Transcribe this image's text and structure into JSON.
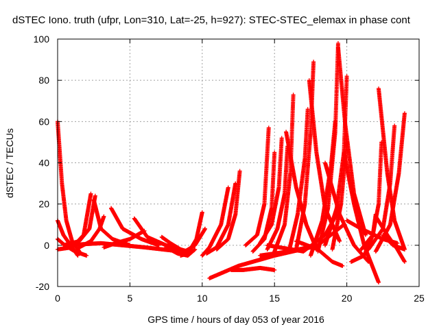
{
  "chart_data": {
    "type": "scatter",
    "title": "dSTEC Iono. truth (ufpr, Lon=310, Lat=-25, h=927): STEC-STEC_elemax in phase cont",
    "xlabel": "GPS time / hours of day 053 of year 2016",
    "ylabel": "dSTEC  / TECUs",
    "xlim": [
      0,
      25
    ],
    "ylim": [
      -20,
      100
    ],
    "xticks": [
      0,
      5,
      10,
      15,
      20,
      25
    ],
    "yticks": [
      -20,
      0,
      20,
      40,
      60,
      80,
      100
    ],
    "xtick_labels": [
      "0",
      "5",
      "10",
      "15",
      "20",
      "25"
    ],
    "ytick_labels": [
      "-20",
      "0",
      "20",
      "40",
      "60",
      "80",
      "100"
    ],
    "grid": true,
    "marker": "plus",
    "color": "#ff0000",
    "series": [
      {
        "x": [
          0.0,
          0.3,
          0.6,
          1.0,
          1.5
        ],
        "y": [
          60,
          30,
          12,
          2,
          -3
        ]
      },
      {
        "x": [
          0.0,
          0.4,
          0.9,
          1.4
        ],
        "y": [
          12,
          5,
          0,
          -5
        ]
      },
      {
        "x": [
          0.0,
          0.5,
          1.2,
          2.0
        ],
        "y": [
          3,
          0,
          -3,
          -5
        ]
      },
      {
        "x": [
          0.0,
          1.0,
          1.8,
          2.3
        ],
        "y": [
          -2,
          -1,
          5,
          25
        ]
      },
      {
        "x": [
          0.4,
          1.5,
          2.2,
          2.6
        ],
        "y": [
          0,
          2,
          8,
          24
        ]
      },
      {
        "x": [
          2.5,
          3.0,
          3.8,
          5.0
        ],
        "y": [
          22,
          8,
          3,
          0
        ]
      },
      {
        "x": [
          1.5,
          2.3,
          2.9,
          3.2
        ],
        "y": [
          -1,
          2,
          8,
          14
        ]
      },
      {
        "x": [
          3.2,
          4.0,
          5.0,
          6.0
        ],
        "y": [
          -1,
          1,
          3,
          7
        ]
      },
      {
        "x": [
          3.7,
          4.5,
          5.8,
          7.0
        ],
        "y": [
          18,
          8,
          3,
          0
        ]
      },
      {
        "x": [
          5.3,
          6.2,
          7.5,
          9.0
        ],
        "y": [
          13,
          4,
          0,
          -3
        ]
      },
      {
        "x": [
          0.5,
          3.0,
          6.0,
          8.5
        ],
        "y": [
          0,
          1,
          -1,
          -3
        ]
      },
      {
        "x": [
          7.2,
          7.8,
          8.5,
          9.0
        ],
        "y": [
          4,
          1,
          -2,
          -5
        ]
      },
      {
        "x": [
          7.5,
          8.3,
          9.0,
          9.5
        ],
        "y": [
          -1,
          -4,
          -5,
          -2
        ]
      },
      {
        "x": [
          8.5,
          9.0,
          9.6,
          10.0
        ],
        "y": [
          -5,
          -4,
          3,
          16
        ]
      },
      {
        "x": [
          8.8,
          9.5,
          10.2
        ],
        "y": [
          -3,
          0,
          8
        ]
      },
      {
        "x": [
          10.0,
          10.5,
          11.3,
          11.8
        ],
        "y": [
          -5,
          -1,
          10,
          28
        ]
      },
      {
        "x": [
          10.3,
          11.0,
          11.8,
          12.3
        ],
        "y": [
          -4,
          -1,
          10,
          30
        ]
      },
      {
        "x": [
          11.0,
          11.8,
          12.3,
          12.6
        ],
        "y": [
          -2,
          3,
          15,
          36
        ]
      },
      {
        "x": [
          10.5,
          12.5,
          15.0,
          17.5
        ],
        "y": [
          -16,
          -10,
          -5,
          -1
        ]
      },
      {
        "x": [
          12.0,
          12.8,
          14.0,
          15.0
        ],
        "y": [
          -12,
          -12,
          -11,
          -12
        ]
      },
      {
        "x": [
          13.0,
          13.8,
          14.3,
          14.6
        ],
        "y": [
          0,
          5,
          20,
          57
        ]
      },
      {
        "x": [
          13.5,
          14.3,
          14.8,
          15.0
        ],
        "y": [
          -3,
          3,
          18,
          45
        ]
      },
      {
        "x": [
          14.0,
          14.8,
          15.3,
          15.5
        ],
        "y": [
          1,
          10,
          28,
          52
        ]
      },
      {
        "x": [
          14.5,
          15.2,
          15.7,
          15.9
        ],
        "y": [
          -2,
          8,
          25,
          48
        ]
      },
      {
        "x": [
          15.0,
          15.7,
          16.1,
          16.3
        ],
        "y": [
          -3,
          10,
          35,
          73
        ]
      },
      {
        "x": [
          15.8,
          16.5,
          17.2,
          17.8
        ],
        "y": [
          55,
          28,
          10,
          0
        ]
      },
      {
        "x": [
          16.0,
          16.6,
          17.1,
          17.3
        ],
        "y": [
          -3,
          15,
          42,
          66
        ]
      },
      {
        "x": [
          16.5,
          17.1,
          17.5,
          17.7
        ],
        "y": [
          -2,
          20,
          55,
          89
        ]
      },
      {
        "x": [
          17.4,
          17.9,
          18.5,
          19.5
        ],
        "y": [
          80,
          45,
          18,
          2
        ]
      },
      {
        "x": [
          17.5,
          18.3,
          18.9,
          19.2
        ],
        "y": [
          -5,
          12,
          38,
          60
        ]
      },
      {
        "x": [
          18.0,
          18.7,
          19.2,
          19.4
        ],
        "y": [
          -3,
          18,
          55,
          98
        ]
      },
      {
        "x": [
          19.4,
          19.9,
          20.5,
          21.3
        ],
        "y": [
          96,
          58,
          25,
          5
        ]
      },
      {
        "x": [
          18.5,
          19.3,
          19.8,
          20.0
        ],
        "y": [
          0,
          18,
          45,
          82
        ]
      },
      {
        "x": [
          19.0,
          19.6,
          20.0
        ],
        "y": [
          -2,
          20,
          50
        ]
      },
      {
        "x": [
          14.5,
          17.0,
          18.5,
          19.3
        ],
        "y": [
          0,
          -3,
          5,
          15
        ]
      },
      {
        "x": [
          14.0,
          16.0,
          18.0,
          19.8
        ],
        "y": [
          -5,
          -3,
          0,
          10
        ]
      },
      {
        "x": [
          16.5,
          18.0,
          19.0,
          19.7
        ],
        "y": [
          2,
          -2,
          -8,
          -10
        ]
      },
      {
        "x": [
          18.5,
          19.5,
          20.5,
          21.5
        ],
        "y": [
          40,
          15,
          0,
          -8
        ]
      },
      {
        "x": [
          19.8,
          20.5,
          21.2,
          22.2
        ],
        "y": [
          45,
          20,
          0,
          -18
        ]
      },
      {
        "x": [
          20.3,
          21.2,
          21.8,
          22.0
        ],
        "y": [
          -8,
          -5,
          5,
          15
        ]
      },
      {
        "x": [
          21.0,
          21.8,
          22.2,
          22.4
        ],
        "y": [
          -2,
          5,
          20,
          50
        ]
      },
      {
        "x": [
          22.2,
          22.8,
          23.3,
          24.0
        ],
        "y": [
          76,
          35,
          12,
          -2
        ]
      },
      {
        "x": [
          21.5,
          22.5,
          23.0,
          23.3
        ],
        "y": [
          -2,
          8,
          30,
          58
        ]
      },
      {
        "x": [
          22.0,
          23.0,
          23.6,
          24.0
        ],
        "y": [
          -3,
          10,
          35,
          64
        ]
      },
      {
        "x": [
          22.0,
          22.8,
          23.5,
          24.0
        ],
        "y": [
          14,
          5,
          -2,
          -8
        ]
      },
      {
        "x": [
          20.0,
          21.0,
          22.5,
          23.5
        ],
        "y": [
          12,
          8,
          3,
          1
        ]
      },
      {
        "x": [
          22.5,
          23.2,
          24.0
        ],
        "y": [
          5,
          0,
          -2
        ]
      }
    ]
  }
}
